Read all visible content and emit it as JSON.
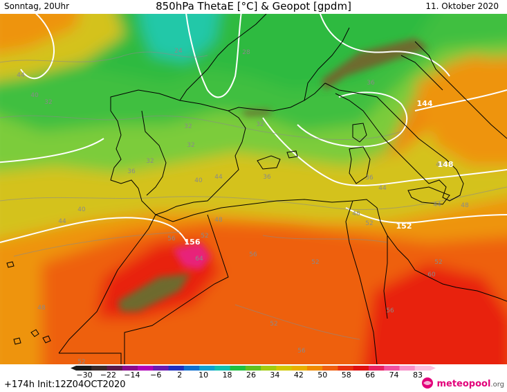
{
  "header": {
    "left": "Sonntag, 20Uhr",
    "title": "850hPa ThetaE [°C] & Geopot [gpdm]",
    "right": "11. Oktober 2020"
  },
  "map_labels": {
    "thetae": [
      {
        "id": "l24",
        "text": "24"
      },
      {
        "id": "l28",
        "text": "28"
      },
      {
        "id": "l44a",
        "text": "44"
      },
      {
        "id": "l40a",
        "text": "40"
      },
      {
        "id": "l32a",
        "text": "32"
      },
      {
        "id": "l32b",
        "text": "32"
      },
      {
        "id": "l32c",
        "text": "32"
      },
      {
        "id": "l32d",
        "text": "32"
      },
      {
        "id": "l32e",
        "text": "32"
      },
      {
        "id": "l36a",
        "text": "36"
      },
      {
        "id": "l36b",
        "text": "36"
      },
      {
        "id": "l36c",
        "text": "36"
      },
      {
        "id": "l36d",
        "text": "36"
      },
      {
        "id": "l40b",
        "text": "40"
      },
      {
        "id": "l40c",
        "text": "40"
      },
      {
        "id": "l40d",
        "text": "40"
      },
      {
        "id": "l44b",
        "text": "44"
      },
      {
        "id": "l44c",
        "text": "44"
      },
      {
        "id": "l44d",
        "text": "44"
      },
      {
        "id": "l44e",
        "text": "44"
      },
      {
        "id": "l48a",
        "text": "48"
      },
      {
        "id": "l48b",
        "text": "48"
      },
      {
        "id": "l48c",
        "text": "48"
      },
      {
        "id": "l48d",
        "text": "48"
      },
      {
        "id": "l52a",
        "text": "52"
      },
      {
        "id": "l52b",
        "text": "52"
      },
      {
        "id": "l52c",
        "text": "52"
      },
      {
        "id": "l52d",
        "text": "52"
      },
      {
        "id": "l52e",
        "text": "52"
      },
      {
        "id": "l52f",
        "text": "52"
      },
      {
        "id": "l56a",
        "text": "56"
      },
      {
        "id": "l56b",
        "text": "56"
      },
      {
        "id": "l56c",
        "text": "56"
      },
      {
        "id": "l56d",
        "text": "56"
      },
      {
        "id": "l60",
        "text": "60"
      },
      {
        "id": "l64",
        "text": "64"
      }
    ],
    "geopot": [
      {
        "id": "g144",
        "text": "144"
      },
      {
        "id": "g148",
        "text": "148"
      },
      {
        "id": "g152",
        "text": "152"
      },
      {
        "id": "g156",
        "text": "156"
      }
    ]
  },
  "colorscale": {
    "ticks": [
      "−30",
      "−22",
      "−14",
      "−6",
      "2",
      "10",
      "18",
      "26",
      "34",
      "42",
      "50",
      "58",
      "66",
      "74",
      "83"
    ],
    "colors": [
      "#1a1a1a",
      "#3a2a2a",
      "#5a1a4a",
      "#8a0a8a",
      "#b000b8",
      "#6a1ab0",
      "#2030c0",
      "#1070d0",
      "#10a0d0",
      "#10c0b0",
      "#20c040",
      "#60c020",
      "#a0cc10",
      "#d0c800",
      "#e8b000",
      "#f08a00",
      "#f06010",
      "#e83010",
      "#e01010",
      "#e82060",
      "#f050a0",
      "#f890c8",
      "#fcc0e0"
    ]
  },
  "footer": {
    "init": "+174h Init:12Z04OCT2020",
    "logo_main": "meteopool",
    "logo_suffix": ".org"
  },
  "colors": {
    "green": "#3cbf3c",
    "light_green": "#7ccc3a",
    "yellow": "#d4c21a",
    "orange": "#ee9410",
    "red_orange": "#ee6010",
    "red": "#e82010",
    "magenta": "#e8207a",
    "olive": "#6e6a2e",
    "teal": "#20c8a8"
  }
}
